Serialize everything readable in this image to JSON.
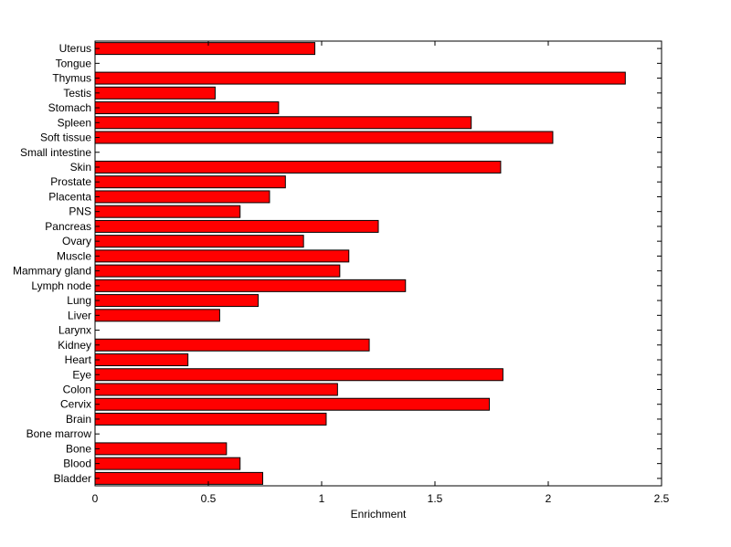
{
  "chart_data": {
    "type": "bar",
    "orientation": "horizontal",
    "title": "",
    "xlabel": "Enrichment",
    "ylabel": "",
    "xlim": [
      0,
      2.5
    ],
    "xticks": [
      "0",
      "0.5",
      "1",
      "1.5",
      "2",
      "2.5"
    ],
    "grid": false,
    "bar_color": "#ff0000",
    "bar_edge_color": "#000000",
    "categories": [
      "Bladder",
      "Blood",
      "Bone",
      "Bone marrow",
      "Brain",
      "Cervix",
      "Colon",
      "Eye",
      "Heart",
      "Kidney",
      "Larynx",
      "Liver",
      "Lung",
      "Lymph node",
      "Mammary gland",
      "Muscle",
      "Ovary",
      "Pancreas",
      "PNS",
      "Placenta",
      "Prostate",
      "Skin",
      "Small intestine",
      "Soft tissue",
      "Spleen",
      "Stomach",
      "Testis",
      "Thymus",
      "Tongue",
      "Uterus"
    ],
    "values": [
      0.74,
      0.64,
      0.58,
      0,
      1.02,
      1.74,
      1.07,
      1.8,
      0.41,
      1.21,
      0,
      0.55,
      0.72,
      1.37,
      1.08,
      1.12,
      0.92,
      1.25,
      0.64,
      0.77,
      0.84,
      1.79,
      0,
      2.02,
      1.66,
      0.81,
      0.53,
      2.34,
      0,
      0.97
    ]
  }
}
